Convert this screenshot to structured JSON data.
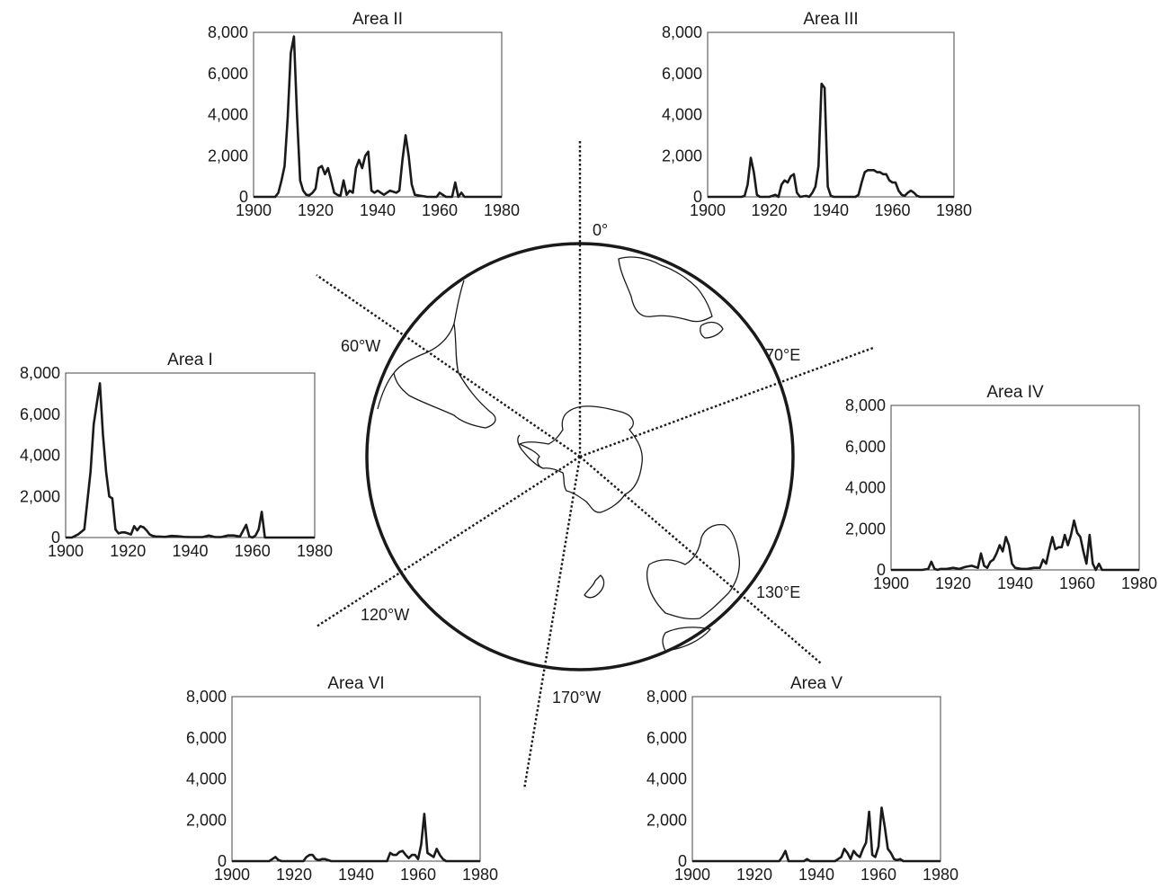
{
  "chart_data": [
    {
      "type": "line",
      "title": "Area I",
      "xlim": [
        1900,
        1980
      ],
      "ylim": [
        0,
        8000
      ],
      "xticks": [
        1900,
        1920,
        1940,
        1960,
        1980
      ],
      "yticks": [
        0,
        2000,
        4000,
        6000,
        8000
      ],
      "xtick_labels": [
        "1900",
        "1920",
        "1940",
        "1960",
        "1980"
      ],
      "ytick_labels": [
        "0",
        "2,000",
        "4,000",
        "6,000",
        "8,000"
      ],
      "x": [
        1900,
        1902,
        1904,
        1906,
        1908,
        1909,
        1910,
        1911,
        1912,
        1913,
        1914,
        1915,
        1916,
        1917,
        1918,
        1919,
        1920,
        1921,
        1922,
        1923,
        1924,
        1925,
        1926,
        1927,
        1928,
        1929,
        1930,
        1932,
        1934,
        1936,
        1938,
        1940,
        1942,
        1944,
        1946,
        1948,
        1950,
        1952,
        1954,
        1956,
        1958,
        1959,
        1960,
        1961,
        1962,
        1963,
        1964,
        1966,
        1970,
        1980
      ],
      "y": [
        0,
        0,
        150,
        400,
        3200,
        5500,
        6500,
        7500,
        5000,
        3200,
        2000,
        1900,
        400,
        200,
        250,
        250,
        200,
        150,
        550,
        350,
        550,
        500,
        350,
        150,
        80,
        50,
        50,
        30,
        80,
        60,
        30,
        20,
        20,
        20,
        100,
        20,
        20,
        100,
        100,
        50,
        620,
        50,
        0,
        100,
        400,
        1250,
        0,
        0,
        0,
        0
      ]
    },
    {
      "type": "line",
      "title": "Area II",
      "xlim": [
        1900,
        1980
      ],
      "ylim": [
        0,
        8000
      ],
      "xticks": [
        1900,
        1920,
        1940,
        1960,
        1980
      ],
      "yticks": [
        0,
        2000,
        4000,
        6000,
        8000
      ],
      "xtick_labels": [
        "1900",
        "1920",
        "1940",
        "1960",
        "1980"
      ],
      "ytick_labels": [
        "0",
        "2,000",
        "4,000",
        "6,000",
        "8,000"
      ],
      "x": [
        1900,
        1907,
        1908,
        1909,
        1910,
        1911,
        1912,
        1913,
        1914,
        1915,
        1916,
        1917,
        1918,
        1919,
        1920,
        1921,
        1922,
        1923,
        1924,
        1925,
        1926,
        1927,
        1928,
        1929,
        1930,
        1931,
        1932,
        1933,
        1934,
        1935,
        1936,
        1937,
        1938,
        1939,
        1940,
        1942,
        1944,
        1946,
        1947,
        1948,
        1949,
        1950,
        1951,
        1952,
        1954,
        1956,
        1958,
        1959,
        1960,
        1962,
        1964,
        1965,
        1966,
        1967,
        1968,
        1969,
        1980
      ],
      "y": [
        0,
        0,
        200,
        800,
        1500,
        3800,
        7000,
        7800,
        4000,
        800,
        300,
        100,
        80,
        200,
        400,
        1400,
        1500,
        1100,
        1400,
        800,
        200,
        100,
        50,
        800,
        100,
        300,
        200,
        1400,
        1800,
        1400,
        2000,
        2200,
        300,
        200,
        300,
        100,
        300,
        200,
        300,
        1800,
        3000,
        2000,
        600,
        100,
        50,
        0,
        0,
        0,
        200,
        0,
        0,
        700,
        0,
        200,
        0,
        0,
        0
      ]
    },
    {
      "type": "line",
      "title": "Area III",
      "xlim": [
        1900,
        1980
      ],
      "ylim": [
        0,
        8000
      ],
      "xticks": [
        1900,
        1920,
        1940,
        1960,
        1980
      ],
      "yticks": [
        0,
        2000,
        4000,
        6000,
        8000
      ],
      "xtick_labels": [
        "1900",
        "1920",
        "1940",
        "1960",
        "1980"
      ],
      "ytick_labels": [
        "0",
        "2,000",
        "4,000",
        "6,000",
        "8,000"
      ],
      "x": [
        1900,
        1911,
        1912,
        1913,
        1914,
        1915,
        1916,
        1917,
        1920,
        1921,
        1922,
        1923,
        1924,
        1925,
        1926,
        1927,
        1928,
        1929,
        1930,
        1932,
        1933,
        1934,
        1935,
        1936,
        1937,
        1938,
        1939,
        1940,
        1941,
        1948,
        1949,
        1950,
        1951,
        1952,
        1953,
        1954,
        1955,
        1956,
        1957,
        1958,
        1959,
        1960,
        1961,
        1962,
        1963,
        1964,
        1965,
        1966,
        1967,
        1968,
        1969,
        1980
      ],
      "y": [
        0,
        0,
        50,
        600,
        1900,
        1200,
        100,
        0,
        0,
        50,
        100,
        0,
        600,
        800,
        700,
        1000,
        1100,
        200,
        0,
        50,
        0,
        200,
        500,
        1500,
        5500,
        5300,
        500,
        50,
        0,
        0,
        100,
        700,
        1200,
        1300,
        1300,
        1300,
        1200,
        1200,
        1100,
        1100,
        800,
        700,
        700,
        300,
        100,
        50,
        200,
        300,
        200,
        50,
        0,
        0
      ]
    },
    {
      "type": "line",
      "title": "Area IV",
      "xlim": [
        1900,
        1980
      ],
      "ylim": [
        0,
        8000
      ],
      "xticks": [
        1900,
        1920,
        1940,
        1960,
        1980
      ],
      "yticks": [
        0,
        2000,
        4000,
        6000,
        8000
      ],
      "xtick_labels": [
        "1900",
        "1920",
        "1940",
        "1960",
        "1980"
      ],
      "ytick_labels": [
        "0",
        "2,000",
        "4,000",
        "6,000",
        "8,000"
      ],
      "x": [
        1900,
        1910,
        1912,
        1913,
        1914,
        1915,
        1916,
        1918,
        1920,
        1922,
        1924,
        1926,
        1928,
        1929,
        1930,
        1931,
        1932,
        1933,
        1934,
        1935,
        1936,
        1937,
        1938,
        1939,
        1940,
        1942,
        1944,
        1946,
        1948,
        1949,
        1950,
        1951,
        1952,
        1953,
        1954,
        1955,
        1956,
        1957,
        1958,
        1959,
        1960,
        1961,
        1962,
        1963,
        1964,
        1965,
        1966,
        1967,
        1968,
        1970,
        1980
      ],
      "y": [
        0,
        0,
        50,
        400,
        50,
        0,
        50,
        50,
        100,
        50,
        150,
        200,
        100,
        800,
        200,
        100,
        400,
        500,
        800,
        1200,
        900,
        1600,
        1200,
        300,
        100,
        50,
        50,
        100,
        100,
        500,
        300,
        1000,
        1600,
        1000,
        1100,
        1100,
        1700,
        1200,
        1700,
        2400,
        1800,
        1600,
        900,
        300,
        1700,
        300,
        0,
        300,
        0,
        0,
        0
      ]
    },
    {
      "type": "line",
      "title": "Area V",
      "xlim": [
        1900,
        1980
      ],
      "ylim": [
        0,
        8000
      ],
      "xticks": [
        1900,
        1920,
        1940,
        1960,
        1980
      ],
      "yticks": [
        0,
        2000,
        4000,
        6000,
        8000
      ],
      "xtick_labels": [
        "1900",
        "1920",
        "1940",
        "1960",
        "1980"
      ],
      "ytick_labels": [
        "0",
        "2,000",
        "4,000",
        "6,000",
        "8,000"
      ],
      "x": [
        1900,
        1928,
        1929,
        1930,
        1931,
        1936,
        1937,
        1938,
        1940,
        1946,
        1947,
        1948,
        1949,
        1950,
        1951,
        1952,
        1953,
        1954,
        1955,
        1956,
        1957,
        1958,
        1959,
        1960,
        1961,
        1962,
        1963,
        1964,
        1965,
        1966,
        1967,
        1968,
        1980
      ],
      "y": [
        0,
        0,
        200,
        500,
        0,
        0,
        100,
        0,
        0,
        0,
        100,
        200,
        600,
        400,
        100,
        500,
        300,
        200,
        600,
        900,
        2400,
        300,
        200,
        700,
        2600,
        1700,
        600,
        400,
        100,
        50,
        100,
        0,
        0
      ]
    },
    {
      "type": "line",
      "title": "Area VI",
      "xlim": [
        1900,
        1980
      ],
      "ylim": [
        0,
        8000
      ],
      "xticks": [
        1900,
        1920,
        1940,
        1960,
        1980
      ],
      "yticks": [
        0,
        2000,
        4000,
        6000,
        8000
      ],
      "xtick_labels": [
        "1900",
        "1920",
        "1940",
        "1960",
        "1980"
      ],
      "ytick_labels": [
        "0",
        "2,000",
        "4,000",
        "6,000",
        "8,000"
      ],
      "x": [
        1900,
        1912,
        1913,
        1914,
        1915,
        1916,
        1923,
        1924,
        1925,
        1926,
        1927,
        1928,
        1929,
        1930,
        1931,
        1932,
        1950,
        1951,
        1952,
        1953,
        1954,
        1955,
        1956,
        1957,
        1958,
        1959,
        1960,
        1961,
        1962,
        1963,
        1964,
        1965,
        1966,
        1967,
        1968,
        1969,
        1980
      ],
      "y": [
        0,
        0,
        100,
        200,
        50,
        0,
        0,
        200,
        300,
        300,
        100,
        50,
        100,
        100,
        50,
        0,
        0,
        400,
        300,
        300,
        450,
        500,
        300,
        150,
        300,
        300,
        100,
        800,
        2300,
        400,
        300,
        200,
        600,
        300,
        100,
        0,
        0
      ]
    }
  ],
  "map": {
    "type": "polar-map",
    "meridian_labels": [
      "0°",
      "70°E",
      "130°E",
      "170°W",
      "120°W",
      "60°W"
    ]
  }
}
